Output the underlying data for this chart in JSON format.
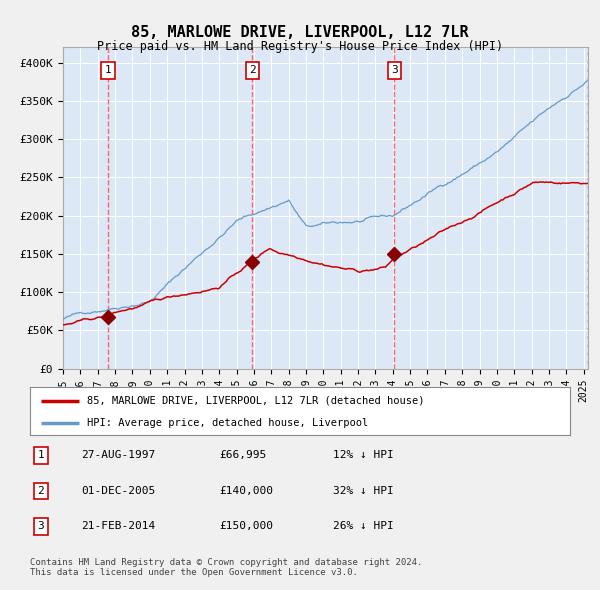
{
  "title": "85, MARLOWE DRIVE, LIVERPOOL, L12 7LR",
  "subtitle": "Price paid vs. HM Land Registry's House Price Index (HPI)",
  "fig_bg_color": "#f0f0f0",
  "plot_bg_color": "#dce8f5",
  "sale_dates": [
    "1997-08-01",
    "2005-12-01",
    "2014-02-01"
  ],
  "sale_prices": [
    66995,
    140000,
    150000
  ],
  "sale_labels": [
    "1",
    "2",
    "3"
  ],
  "legend_label_red": "85, MARLOWE DRIVE, LIVERPOOL, L12 7LR (detached house)",
  "legend_label_blue": "HPI: Average price, detached house, Liverpool",
  "table_rows": [
    [
      "1",
      "27-AUG-1997",
      "£66,995",
      "12% ↓ HPI"
    ],
    [
      "2",
      "01-DEC-2005",
      "£140,000",
      "32% ↓ HPI"
    ],
    [
      "3",
      "21-FEB-2014",
      "£150,000",
      "26% ↓ HPI"
    ]
  ],
  "footnote": "Contains HM Land Registry data © Crown copyright and database right 2024.\nThis data is licensed under the Open Government Licence v3.0.",
  "ylabel_values": [
    0,
    50000,
    100000,
    150000,
    200000,
    250000,
    300000,
    350000,
    400000
  ],
  "ylim": [
    0,
    420000
  ],
  "red_line_color": "#cc0000",
  "blue_line_color": "#6699cc",
  "dashed_line_color": "#ff6666",
  "marker_color": "#880000"
}
